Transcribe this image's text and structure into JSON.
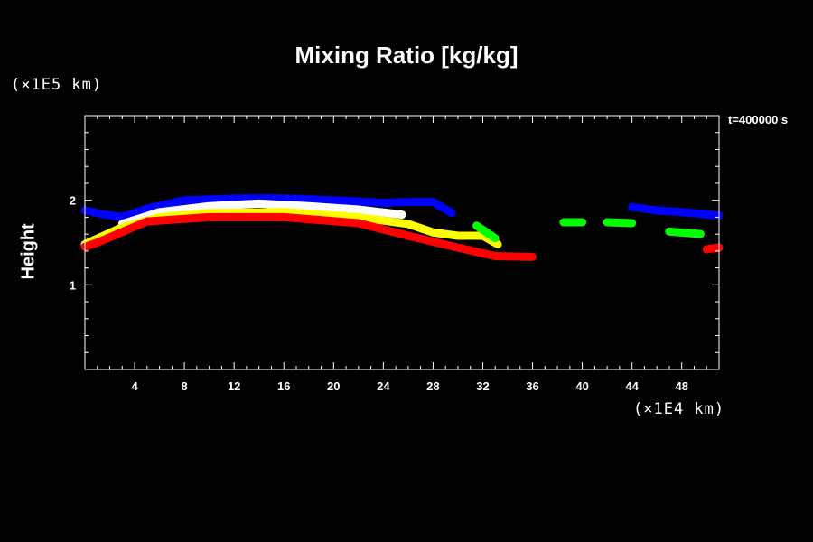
{
  "chart_data": {
    "type": "area",
    "title": "Mixing Ratio [kg/kg]",
    "ylabel": "Height",
    "y_unit": "(×1E5 km)",
    "x_unit": "(×1E4 km)",
    "time_label": "t=400000 s",
    "xlim": [
      0,
      51
    ],
    "ylim": [
      0,
      3
    ],
    "x_ticks": [
      4,
      8,
      12,
      16,
      20,
      24,
      28,
      32,
      36,
      40,
      44,
      48
    ],
    "y_ticks": [
      1,
      2
    ],
    "colors": {
      "blue": "#0000ff",
      "white": "#ffffff",
      "yellow": "#ffff00",
      "red": "#ff0000",
      "green": "#00ff00"
    },
    "series": [
      {
        "color": "blue",
        "x": [
          0,
          1.6,
          3,
          5,
          8,
          12,
          16,
          20,
          24,
          26,
          28,
          29.5
        ],
        "y": [
          1.88,
          1.83,
          1.8,
          1.9,
          2.0,
          2.02,
          2.02,
          2.0,
          1.97,
          1.98,
          1.98,
          1.85
        ]
      },
      {
        "color": "blue",
        "x": [
          44,
          46,
          48,
          51
        ],
        "y": [
          1.92,
          1.88,
          1.86,
          1.82
        ]
      },
      {
        "color": "white",
        "x": [
          3,
          6,
          10,
          14,
          18,
          22,
          25.5
        ],
        "y": [
          1.72,
          1.86,
          1.93,
          1.96,
          1.93,
          1.89,
          1.83
        ]
      },
      {
        "color": "yellow",
        "x": [
          0,
          3,
          6,
          10,
          16,
          22,
          26,
          28,
          30,
          32,
          33.2
        ],
        "y": [
          1.48,
          1.68,
          1.8,
          1.85,
          1.86,
          1.8,
          1.72,
          1.62,
          1.58,
          1.58,
          1.48
        ]
      },
      {
        "color": "red",
        "x": [
          0,
          1,
          5,
          10,
          16,
          22,
          26,
          30,
          33,
          36
        ],
        "y": [
          1.45,
          1.5,
          1.75,
          1.8,
          1.8,
          1.73,
          1.58,
          1.44,
          1.34,
          1.33
        ]
      },
      {
        "color": "red",
        "x": [
          50,
          51
        ],
        "y": [
          1.42,
          1.44
        ]
      },
      {
        "color": "green",
        "x": [
          31.5,
          32.5,
          33
        ],
        "y": [
          1.7,
          1.6,
          1.55
        ]
      },
      {
        "color": "green",
        "x": [
          38.5,
          40
        ],
        "y": [
          1.74,
          1.74
        ]
      },
      {
        "color": "green",
        "x": [
          42,
          44
        ],
        "y": [
          1.74,
          1.73
        ]
      },
      {
        "color": "green",
        "x": [
          47,
          49.5
        ],
        "y": [
          1.63,
          1.6
        ]
      }
    ],
    "grid": false,
    "legend": "none"
  }
}
